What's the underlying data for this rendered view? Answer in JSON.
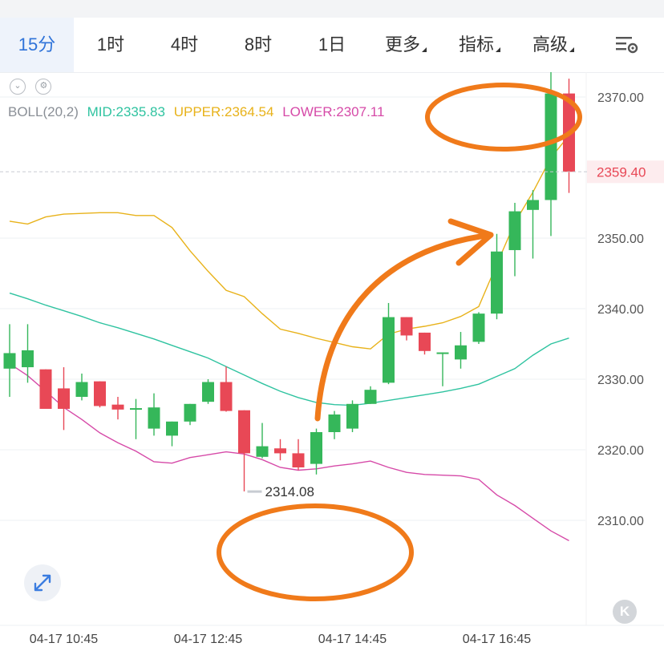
{
  "tabs": [
    {
      "label": "15分",
      "active": true
    },
    {
      "label": "1时"
    },
    {
      "label": "4时"
    },
    {
      "label": "8时"
    },
    {
      "label": "1日"
    },
    {
      "label": "更多",
      "dropdown": true
    },
    {
      "label": "指标",
      "dropdown": true
    },
    {
      "label": "高级",
      "dropdown": true
    }
  ],
  "icons": {
    "settings": "chart-settings-icon",
    "collapse": "chevron-down-icon",
    "gear": "gear-icon",
    "expand": "expand-arrows-icon",
    "k": "K"
  },
  "indicator": {
    "name": "BOLL(20,2)",
    "mid": "MID:2335.83",
    "upper": "UPPER:2364.54",
    "lower": "LOWER:2307.11"
  },
  "colors": {
    "up": "#35b75a",
    "down": "#e84856",
    "mid": "#2fc3a0",
    "upper": "#e8b21a",
    "lower": "#d64aa8",
    "annotation": "#f07a1a",
    "price_tag": "#e84856",
    "tab_active": "#2f73d9"
  },
  "chart_data": {
    "type": "candlestick",
    "ylim": [
      2306,
      2378
    ],
    "yticks": [
      "2370.00",
      "2350.00",
      "2340.00",
      "2330.00",
      "2320.00",
      "2310.00"
    ],
    "xticks": [
      "04-17 10:45",
      "04-17 12:45",
      "04-17 14:45",
      "04-17 16:45"
    ],
    "xtick_index": [
      3,
      11,
      19,
      27
    ],
    "current_price": "2359.40",
    "high_label": "2376.96",
    "low_label": "2314.08",
    "candles": [
      {
        "o": 2331.5,
        "h": 2337.8,
        "l": 2327.5,
        "c": 2333.7
      },
      {
        "o": 2331.7,
        "h": 2337.8,
        "l": 2329.5,
        "c": 2334.1
      },
      {
        "o": 2331.4,
        "h": 2331.4,
        "l": 2326.0,
        "c": 2325.8
      },
      {
        "o": 2328.7,
        "h": 2331.7,
        "l": 2322.8,
        "c": 2325.8
      },
      {
        "o": 2327.5,
        "h": 2330.8,
        "l": 2327.0,
        "c": 2329.6
      },
      {
        "o": 2329.7,
        "h": 2329.7,
        "l": 2326.0,
        "c": 2326.2
      },
      {
        "o": 2326.4,
        "h": 2327.5,
        "l": 2324.3,
        "c": 2325.7
      },
      {
        "o": 2325.7,
        "h": 2327.2,
        "l": 2321.5,
        "c": 2325.9
      },
      {
        "o": 2323.0,
        "h": 2328.0,
        "l": 2322.0,
        "c": 2326.0
      },
      {
        "o": 2322.0,
        "h": 2324.0,
        "l": 2320.5,
        "c": 2324.0
      },
      {
        "o": 2324.0,
        "h": 2326.5,
        "l": 2323.5,
        "c": 2326.5
      },
      {
        "o": 2326.8,
        "h": 2330.0,
        "l": 2326.5,
        "c": 2329.6
      },
      {
        "o": 2329.6,
        "h": 2331.8,
        "l": 2325.4,
        "c": 2325.5
      },
      {
        "o": 2325.6,
        "h": 2325.6,
        "l": 2314.1,
        "c": 2319.5
      },
      {
        "o": 2319.0,
        "h": 2323.8,
        "l": 2318.8,
        "c": 2320.5
      },
      {
        "o": 2320.2,
        "h": 2321.5,
        "l": 2318.5,
        "c": 2319.5
      },
      {
        "o": 2319.5,
        "h": 2321.5,
        "l": 2317.1,
        "c": 2317.5
      },
      {
        "o": 2318.0,
        "h": 2323.0,
        "l": 2316.5,
        "c": 2322.5
      },
      {
        "o": 2322.5,
        "h": 2325.5,
        "l": 2321.5,
        "c": 2325.0
      },
      {
        "o": 2323.0,
        "h": 2327.0,
        "l": 2322.5,
        "c": 2326.5
      },
      {
        "o": 2326.5,
        "h": 2329.0,
        "l": 2326.5,
        "c": 2328.5
      },
      {
        "o": 2329.5,
        "h": 2340.8,
        "l": 2329.3,
        "c": 2338.8
      },
      {
        "o": 2338.8,
        "h": 2338.8,
        "l": 2335.5,
        "c": 2336.2
      },
      {
        "o": 2336.6,
        "h": 2336.6,
        "l": 2333.5,
        "c": 2334.0
      },
      {
        "o": 2333.8,
        "h": 2333.8,
        "l": 2329.0,
        "c": 2333.8
      },
      {
        "o": 2332.8,
        "h": 2336.7,
        "l": 2331.5,
        "c": 2334.8
      },
      {
        "o": 2335.3,
        "h": 2339.5,
        "l": 2335.0,
        "c": 2339.3
      },
      {
        "o": 2339.3,
        "h": 2350.6,
        "l": 2338.5,
        "c": 2348.1
      },
      {
        "o": 2348.3,
        "h": 2355.0,
        "l": 2344.6,
        "c": 2353.8
      },
      {
        "o": 2354.0,
        "h": 2356.8,
        "l": 2347.1,
        "c": 2355.4
      },
      {
        "o": 2355.4,
        "h": 2376.96,
        "l": 2350.3,
        "c": 2370.5
      },
      {
        "o": 2370.5,
        "h": 2372.6,
        "l": 2356.4,
        "c": 2359.4
      }
    ],
    "boll_mid": [
      2342.2,
      2341.4,
      2340.5,
      2339.7,
      2338.9,
      2338.0,
      2337.3,
      2336.5,
      2335.7,
      2334.8,
      2333.9,
      2333.0,
      2331.8,
      2330.6,
      2329.4,
      2328.3,
      2327.4,
      2326.7,
      2326.4,
      2326.3,
      2326.6,
      2327.0,
      2327.4,
      2327.8,
      2328.2,
      2328.7,
      2329.3,
      2330.4,
      2331.5,
      2333.4,
      2335.0,
      2335.83
    ],
    "boll_upper": [
      2352.4,
      2352.0,
      2353.0,
      2353.4,
      2353.5,
      2353.6,
      2353.6,
      2353.2,
      2353.2,
      2351.5,
      2348.2,
      2345.3,
      2342.6,
      2341.7,
      2339.3,
      2337.1,
      2336.5,
      2335.8,
      2335.2,
      2334.6,
      2334.3,
      2336.4,
      2337.1,
      2337.5,
      2338.0,
      2338.9,
      2340.3,
      2346.3,
      2352.2,
      2356.5,
      2361.4,
      2364.54
    ],
    "boll_lower": [
      2332.2,
      2330.5,
      2328.3,
      2326.0,
      2324.3,
      2322.4,
      2321.0,
      2319.8,
      2318.3,
      2318.1,
      2318.9,
      2319.3,
      2319.7,
      2319.4,
      2318.6,
      2317.5,
      2317.1,
      2317.3,
      2317.7,
      2318.0,
      2318.4,
      2317.5,
      2316.8,
      2316.5,
      2316.4,
      2316.3,
      2315.8,
      2313.6,
      2312.1,
      2310.3,
      2308.5,
      2307.11
    ]
  }
}
